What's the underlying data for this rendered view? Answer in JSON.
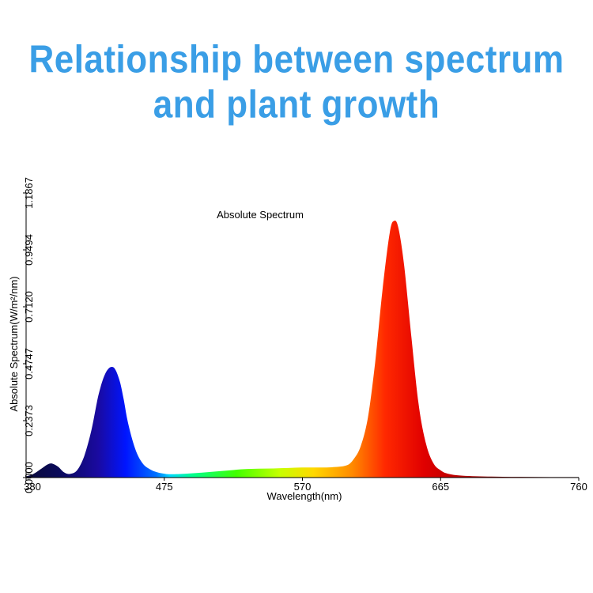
{
  "headline": {
    "line1": "Relationship between spectrum",
    "line2": "and plant growth",
    "color": "#3a9ee6"
  },
  "chart_data": {
    "type": "area",
    "title": "Absolute Spectrum",
    "xlabel": "Wavelength(nm)",
    "ylabel": "Absolute Spectrum(W/m²/nm)",
    "xlim": [
      380,
      760
    ],
    "ylim": [
      0,
      1.1867
    ],
    "x_ticks": [
      "380",
      "475",
      "570",
      "665",
      "760"
    ],
    "y_ticks": [
      "0.0000",
      "0.2373",
      "0.4747",
      "0.7120",
      "0.9494",
      "1.1867"
    ],
    "grid": false,
    "fill": "wavelength-color gradient",
    "series": [
      {
        "x": [
          380,
          385,
          390,
          395,
          398,
          402,
          406,
          410,
          415,
          420,
          425,
          430,
          435,
          440,
          444,
          447,
          450,
          455,
          460,
          465,
          470,
          475,
          480,
          490,
          500,
          510,
          520,
          530,
          540,
          550,
          560,
          570,
          580,
          590,
          600,
          605,
          610,
          615,
          620,
          625,
          630,
          633,
          636,
          640,
          645,
          650,
          655,
          660,
          665,
          670,
          680,
          700,
          720,
          740,
          760
        ],
        "y": [
          0.005,
          0.015,
          0.035,
          0.055,
          0.058,
          0.045,
          0.022,
          0.015,
          0.03,
          0.09,
          0.2,
          0.35,
          0.44,
          0.46,
          0.41,
          0.33,
          0.23,
          0.12,
          0.06,
          0.035,
          0.022,
          0.016,
          0.014,
          0.016,
          0.02,
          0.025,
          0.03,
          0.035,
          0.037,
          0.038,
          0.04,
          0.042,
          0.042,
          0.043,
          0.05,
          0.075,
          0.13,
          0.25,
          0.48,
          0.78,
          1.02,
          1.07,
          1.04,
          0.88,
          0.58,
          0.3,
          0.14,
          0.06,
          0.03,
          0.016,
          0.008,
          0.004,
          0.003,
          0.002,
          0.002
        ]
      }
    ]
  }
}
